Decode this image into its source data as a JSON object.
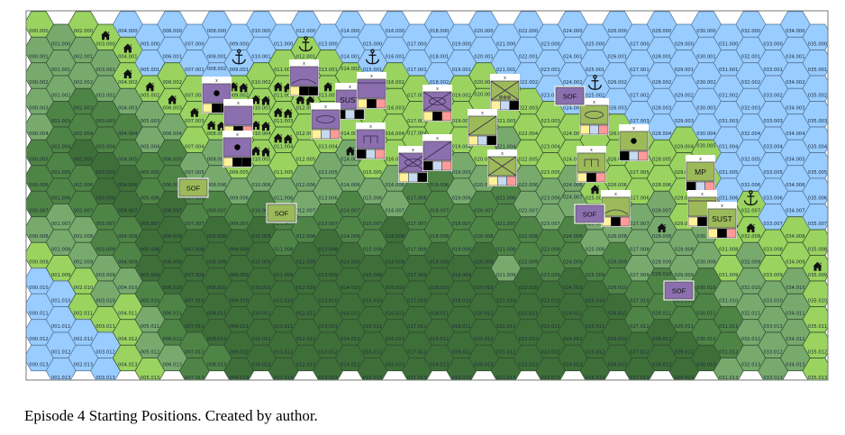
{
  "caption": "Episode 4 Starting Positions. Created by author.",
  "grid": {
    "columns": 36,
    "rows": 14,
    "label_format": "CCC.RRR"
  },
  "terrain_legend": {
    "W": "water",
    "L": "open",
    "M": "light forest",
    "D": "forest",
    "K": "dense forest"
  },
  "colors": {
    "W": "#99ccff",
    "L": "#9ad35f",
    "M": "#78aa6e",
    "D": "#4f8447",
    "K": "#3f6f39",
    "purple": "#8b6fae",
    "green": "#9cba5a",
    "Y": "#fff199",
    "B": "#000000",
    "LB": "#c6d9f0",
    "P": "#ff9a9a"
  },
  "terrain_columns": [
    "LMMMMDDDMLWWWW",
    "MMMDDDDMMLWWWW",
    "LMMDDKDDMMLLWW",
    "LMMDDKKDDMMLWW",
    "WLLMDDKKDDMLLL",
    "WWLMMDDKKKDMML",
    "WWLLMDDKKKKDDM",
    "WWLLLMDDKKKKDD",
    "WWWLLMMDKKKKKD",
    "WWLLLLMDKKKKKK",
    "WWLLLLMDKKKKKK",
    "WLLLLLMDDKKKKK",
    "WLLLLLMMDKKKKK",
    "WLLLLMMDKKKKKK",
    "WWLLLMMDDKKKKK",
    "WWLLLLMDDKKKKK",
    "WWLLLLMMKKKKKK",
    "WWLLLLDDDKKKKK",
    "WWWLLMDDDKKKKK",
    "WWLLLMMDDKKKKK",
    "WWLLLLMDDKKKKK",
    "WWLLMLDDDMKKKK",
    "WWWLLLMMDDKKKK",
    "WWWLLLMMDDKKKK",
    "WWWWLLMMDDKKKK",
    "WWWLLLLMMDKKKK",
    "WWWWLLLMMDDKKK",
    "WWWWLLLMMMDDKK",
    "WWWWWLLMMMDDKK",
    "WWWWLLLLMMDDKK",
    "WWWWWLLMMMDDDK",
    "WWWWWWWLLLMDDM",
    "WWWWWWWLLMMMMM",
    "WWWWWWWWLLMMMM",
    "WWWWWWWWLLMMMM",
    "WWWWWWWWLLLLLL"
  ],
  "features": [
    {
      "type": "house",
      "col": 3,
      "row": 0
    },
    {
      "type": "house",
      "col": 4,
      "row": 1
    },
    {
      "type": "house",
      "col": 4,
      "row": 2
    },
    {
      "type": "house",
      "col": 5,
      "row": 2
    },
    {
      "type": "house",
      "col": 6,
      "row": 3
    },
    {
      "type": "house",
      "col": 7,
      "row": 3
    },
    {
      "type": "houses",
      "col": 9,
      "row": 2
    },
    {
      "type": "houses",
      "col": 10,
      "row": 3
    },
    {
      "type": "houses",
      "col": 8,
      "row": 4
    },
    {
      "type": "houses",
      "col": 10,
      "row": 4
    },
    {
      "type": "houses",
      "col": 10,
      "row": 5
    },
    {
      "type": "houses",
      "col": 11,
      "row": 2
    },
    {
      "type": "houses",
      "col": 11,
      "row": 3
    },
    {
      "type": "houses",
      "col": 11,
      "row": 4
    },
    {
      "type": "houses",
      "col": 12,
      "row": 3
    },
    {
      "type": "house",
      "col": 13,
      "row": 2
    },
    {
      "type": "house",
      "col": 14,
      "row": 5
    },
    {
      "type": "house",
      "col": 25,
      "row": 6
    },
    {
      "type": "house",
      "col": 28,
      "row": 8
    },
    {
      "type": "house",
      "col": 32,
      "row": 8
    },
    {
      "type": "house",
      "col": 35,
      "row": 9
    },
    {
      "type": "anchor",
      "col": 9,
      "row": 1
    },
    {
      "type": "anchor",
      "col": 12,
      "row": 1
    },
    {
      "type": "anchor",
      "col": 15,
      "row": 1
    },
    {
      "type": "anchor",
      "col": 25,
      "row": 2
    },
    {
      "type": "anchor",
      "col": 32,
      "row": 7
    }
  ],
  "units": [
    {
      "side": "purple",
      "symbol": "dot",
      "label": "",
      "echelon": "x",
      "strips": [
        "Y",
        "B",
        "B"
      ]
    },
    {
      "side": "purple",
      "symbol": "none",
      "label": "",
      "echelon": "x",
      "strips": [
        "Y",
        "B",
        "P"
      ]
    },
    {
      "side": "purple",
      "symbol": "dot",
      "label": "",
      "echelon": "x",
      "strips": [
        "Y",
        "B",
        "B"
      ]
    },
    {
      "side": "purple",
      "symbol": "arc",
      "label": "",
      "echelon": "x",
      "strips": [
        "Y",
        "B",
        "B"
      ]
    },
    {
      "side": "purple",
      "symbol": "text",
      "label": "SUST",
      "echelon": "x",
      "strips": [
        "B",
        "LB",
        "B"
      ]
    },
    {
      "side": "purple",
      "symbol": "topline",
      "label": "",
      "echelon": "x",
      "strips": [
        "Y",
        "B",
        "P"
      ]
    },
    {
      "side": "purple",
      "symbol": "ellipse",
      "label": "",
      "echelon": "x",
      "strips": [
        "Y",
        "LB",
        "P"
      ]
    },
    {
      "side": "purple",
      "symbol": "bridge",
      "label": "",
      "echelon": "x",
      "strips": [
        "B",
        "LB",
        "P"
      ]
    },
    {
      "side": "purple",
      "symbol": "cross-ellipse",
      "label": "",
      "echelon": "x",
      "strips": [
        "Y",
        "B",
        "P"
      ]
    },
    {
      "side": "purple",
      "symbol": "cross-ellipse",
      "label": "",
      "echelon": "x",
      "strips": [
        "Y",
        "LB",
        "B"
      ]
    },
    {
      "side": "purple",
      "symbol": "slash",
      "label": "",
      "echelon": "x",
      "strips": [
        "B",
        "LB",
        "P"
      ]
    },
    {
      "side": "green",
      "symbol": "cross-wheels",
      "label": "",
      "echelon": "x",
      "strips": [
        "Y",
        "LB",
        "B"
      ]
    },
    {
      "side": "green",
      "symbol": "slash",
      "label": "",
      "echelon": "x",
      "strips": [
        "Y",
        "LB",
        "B"
      ]
    },
    {
      "side": "green",
      "symbol": "cross",
      "label": "",
      "echelon": "x",
      "strips": [
        "Y",
        "LB",
        "P"
      ]
    },
    {
      "side": "green",
      "symbol": "ellipse",
      "label": "",
      "echelon": "x",
      "strips": [
        "Y",
        "LB",
        "P"
      ]
    },
    {
      "side": "green",
      "symbol": "dot",
      "label": "",
      "echelon": "x",
      "strips": [
        "B",
        "LB",
        "P"
      ]
    },
    {
      "side": "green",
      "symbol": "bridge",
      "label": "",
      "echelon": "x",
      "strips": [
        "Y",
        "B",
        "P"
      ]
    },
    {
      "side": "green",
      "symbol": "arc",
      "label": "",
      "echelon": "x",
      "strips": [
        "Y",
        "B",
        "P"
      ]
    },
    {
      "side": "green",
      "symbol": "text",
      "label": "MP",
      "echelon": "x",
      "strips": [
        "B",
        "LB",
        "P"
      ]
    },
    {
      "side": "green",
      "symbol": "topline",
      "label": "",
      "echelon": "x",
      "strips": [
        "Y",
        "B",
        "P"
      ]
    },
    {
      "side": "green",
      "symbol": "text",
      "label": "SUST",
      "echelon": "x",
      "strips": [
        "Y",
        "B",
        "P"
      ]
    }
  ],
  "sof_markers": [
    {
      "side": "purple",
      "label": "SOF"
    },
    {
      "side": "purple",
      "label": "SOF"
    },
    {
      "side": "purple",
      "label": "SOF"
    },
    {
      "side": "green",
      "label": "SOF"
    },
    {
      "side": "green",
      "label": "SOF"
    }
  ]
}
